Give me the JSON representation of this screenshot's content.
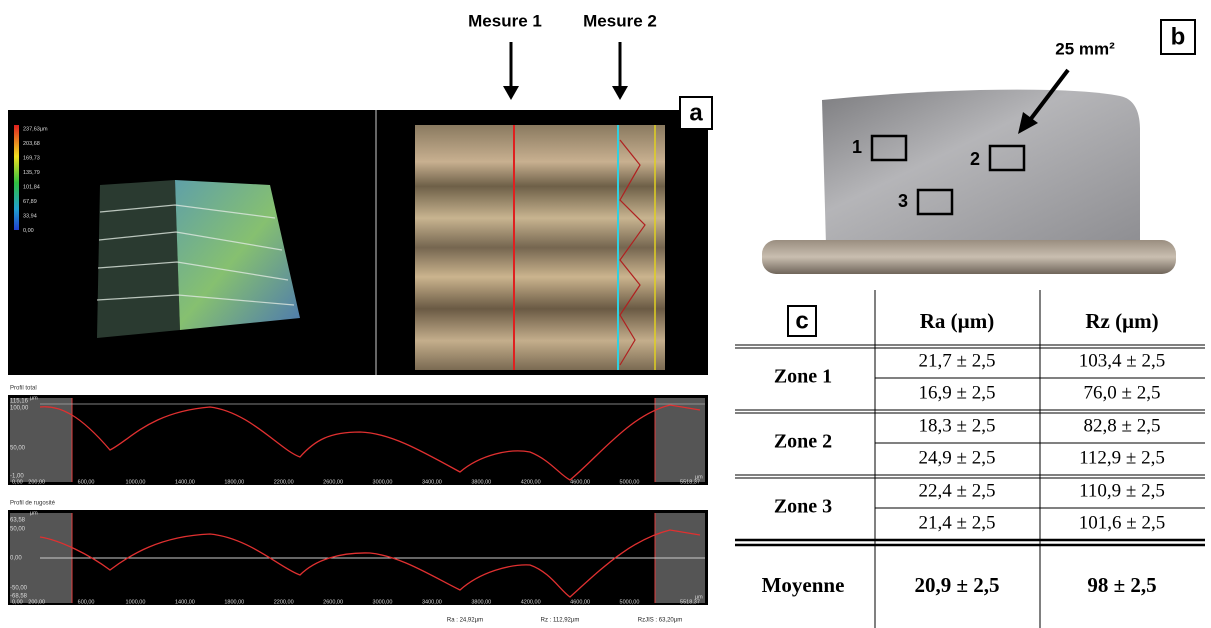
{
  "panel_a": {
    "label": "a",
    "measures": [
      "Mesure 1",
      "Mesure 2"
    ],
    "color_scale": [
      "237,63µm",
      "203,68",
      "169,73",
      "135,79",
      "101,84",
      "67,89",
      "33,94",
      "0,00"
    ],
    "total_profile": {
      "title": "Profil total",
      "unit": "µm",
      "y_labels": [
        "115,16",
        "100,00",
        "50,00",
        "-1,00"
      ],
      "x_labels": [
        "0,00",
        "200,00",
        "600,00",
        "1000,00",
        "1400,00",
        "1800,00",
        "2200,00",
        "2600,00",
        "3000,00",
        "3400,00",
        "3800,00",
        "4200,00",
        "4600,00",
        "5000,00",
        "5518,37"
      ]
    },
    "roughness_profile": {
      "title": "Profil de rugosité",
      "unit": "µm",
      "y_labels": [
        "63,58",
        "50,00",
        "0,00",
        "-50,00",
        "-68,58"
      ],
      "x_labels": [
        "0,00",
        "200,00",
        "600,00",
        "1000,00",
        "1400,00",
        "1800,00",
        "2200,00",
        "2600,00",
        "3000,00",
        "3400,00",
        "3800,00",
        "4200,00",
        "4600,00",
        "5000,00",
        "5518,37"
      ],
      "stats": [
        "Ra : 24,92µm",
        "Rz : 112,92µm",
        "RzJIS : 63,20µm"
      ]
    }
  },
  "panel_b": {
    "label": "b",
    "area": "25 mm²",
    "zones": [
      "1",
      "2",
      "3"
    ]
  },
  "table": {
    "headers": [
      "c",
      "Ra (µm)",
      "Rz (µm)"
    ],
    "groups": [
      {
        "zone": "Zone 1",
        "rows": [
          [
            "21,7 ± 2,5",
            "103,4 ± 2,5"
          ],
          [
            "16,9 ± 2,5",
            "76,0 ± 2,5"
          ]
        ]
      },
      {
        "zone": "Zone 2",
        "rows": [
          [
            "18,3 ± 2,5",
            "82,8 ± 2,5"
          ],
          [
            "24,9 ± 2,5",
            "112,9 ± 2,5"
          ]
        ]
      },
      {
        "zone": "Zone 3",
        "rows": [
          [
            "22,4 ± 2,5",
            "110,9 ± 2,5"
          ],
          [
            "21,4 ± 2,5",
            "101,6 ± 2,5"
          ]
        ]
      }
    ],
    "mean": [
      "Moyenne",
      "20,9 ± 2,5",
      "98 ± 2,5"
    ]
  }
}
